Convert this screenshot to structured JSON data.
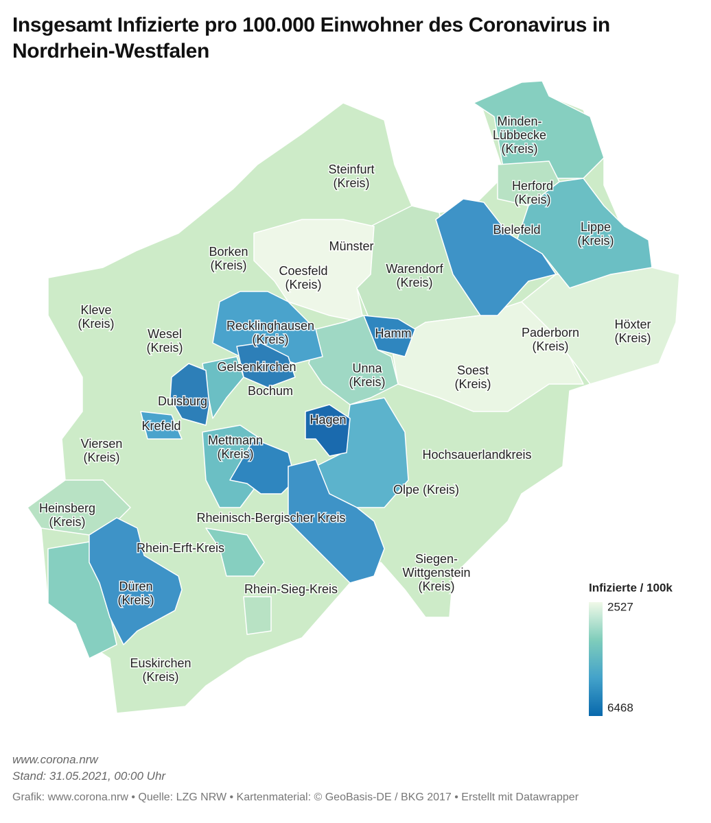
{
  "header": {
    "title": "Insgesamt Infizierte pro 100.000 Einwohner des Coronavirus in Nordrhein-Westfalen"
  },
  "regions": [
    {
      "lines": [
        "Minden-",
        "Lübbecke",
        "(Kreis)"
      ]
    },
    {
      "lines": [
        "Steinfurt",
        "(Kreis)"
      ]
    },
    {
      "lines": [
        "Herford",
        "(Kreis)"
      ]
    },
    {
      "lines": [
        "Lippe",
        "(Kreis)"
      ]
    },
    {
      "lines": [
        "Bielefeld"
      ]
    },
    {
      "lines": [
        "Münster"
      ]
    },
    {
      "lines": [
        "Borken",
        "(Kreis)"
      ]
    },
    {
      "lines": [
        "Coesfeld",
        "(Kreis)"
      ]
    },
    {
      "lines": [
        "Warendorf",
        "(Kreis)"
      ]
    },
    {
      "lines": [
        "Kleve",
        "(Kreis)"
      ]
    },
    {
      "lines": [
        "Recklinghausen",
        "(Kreis)"
      ]
    },
    {
      "lines": [
        "Hamm"
      ]
    },
    {
      "lines": [
        "Wesel",
        "(Kreis)"
      ]
    },
    {
      "lines": [
        "Paderborn",
        "(Kreis)"
      ]
    },
    {
      "lines": [
        "Höxter",
        "(Kreis)"
      ]
    },
    {
      "lines": [
        "Gelsenkirchen"
      ]
    },
    {
      "lines": [
        "Unna",
        "(Kreis)"
      ]
    },
    {
      "lines": [
        "Soest",
        "(Kreis)"
      ]
    },
    {
      "lines": [
        "Bochum"
      ]
    },
    {
      "lines": [
        "Duisburg"
      ]
    },
    {
      "lines": [
        "Hagen"
      ]
    },
    {
      "lines": [
        "Krefeld"
      ]
    },
    {
      "lines": [
        "Mettmann",
        "(Kreis)"
      ]
    },
    {
      "lines": [
        "Viersen",
        "(Kreis)"
      ]
    },
    {
      "lines": [
        "Hochsauerlandkreis"
      ]
    },
    {
      "lines": [
        "Olpe (Kreis)"
      ]
    },
    {
      "lines": [
        "Heinsberg",
        "(Kreis)"
      ]
    },
    {
      "lines": [
        "Rheinisch-Bergischer Kreis"
      ]
    },
    {
      "lines": [
        "Rhein-Erft-Kreis"
      ]
    },
    {
      "lines": [
        "Siegen-",
        "Wittgenstein",
        "(Kreis)"
      ]
    },
    {
      "lines": [
        "Düren",
        "(Kreis)"
      ]
    },
    {
      "lines": [
        "Rhein-Sieg-Kreis"
      ]
    },
    {
      "lines": [
        "Euskirchen",
        "(Kreis)"
      ]
    }
  ],
  "legend": {
    "title": "Infizierte / 100k",
    "min": 2527,
    "max": 6468,
    "colors": [
      "#f0f9e8",
      "#7fcdbb",
      "#43a2ca",
      "#0868ac"
    ]
  },
  "footer": {
    "source_url": "www.corona.nrw",
    "date": "Stand: 31.05.2021, 00:00 Uhr",
    "credits": "Grafik: www.corona.nrw • Quelle: LZG NRW • Kartenmaterial: © GeoBasis-DE / BKG 2017 • Erstellt mit Datawrapper"
  }
}
